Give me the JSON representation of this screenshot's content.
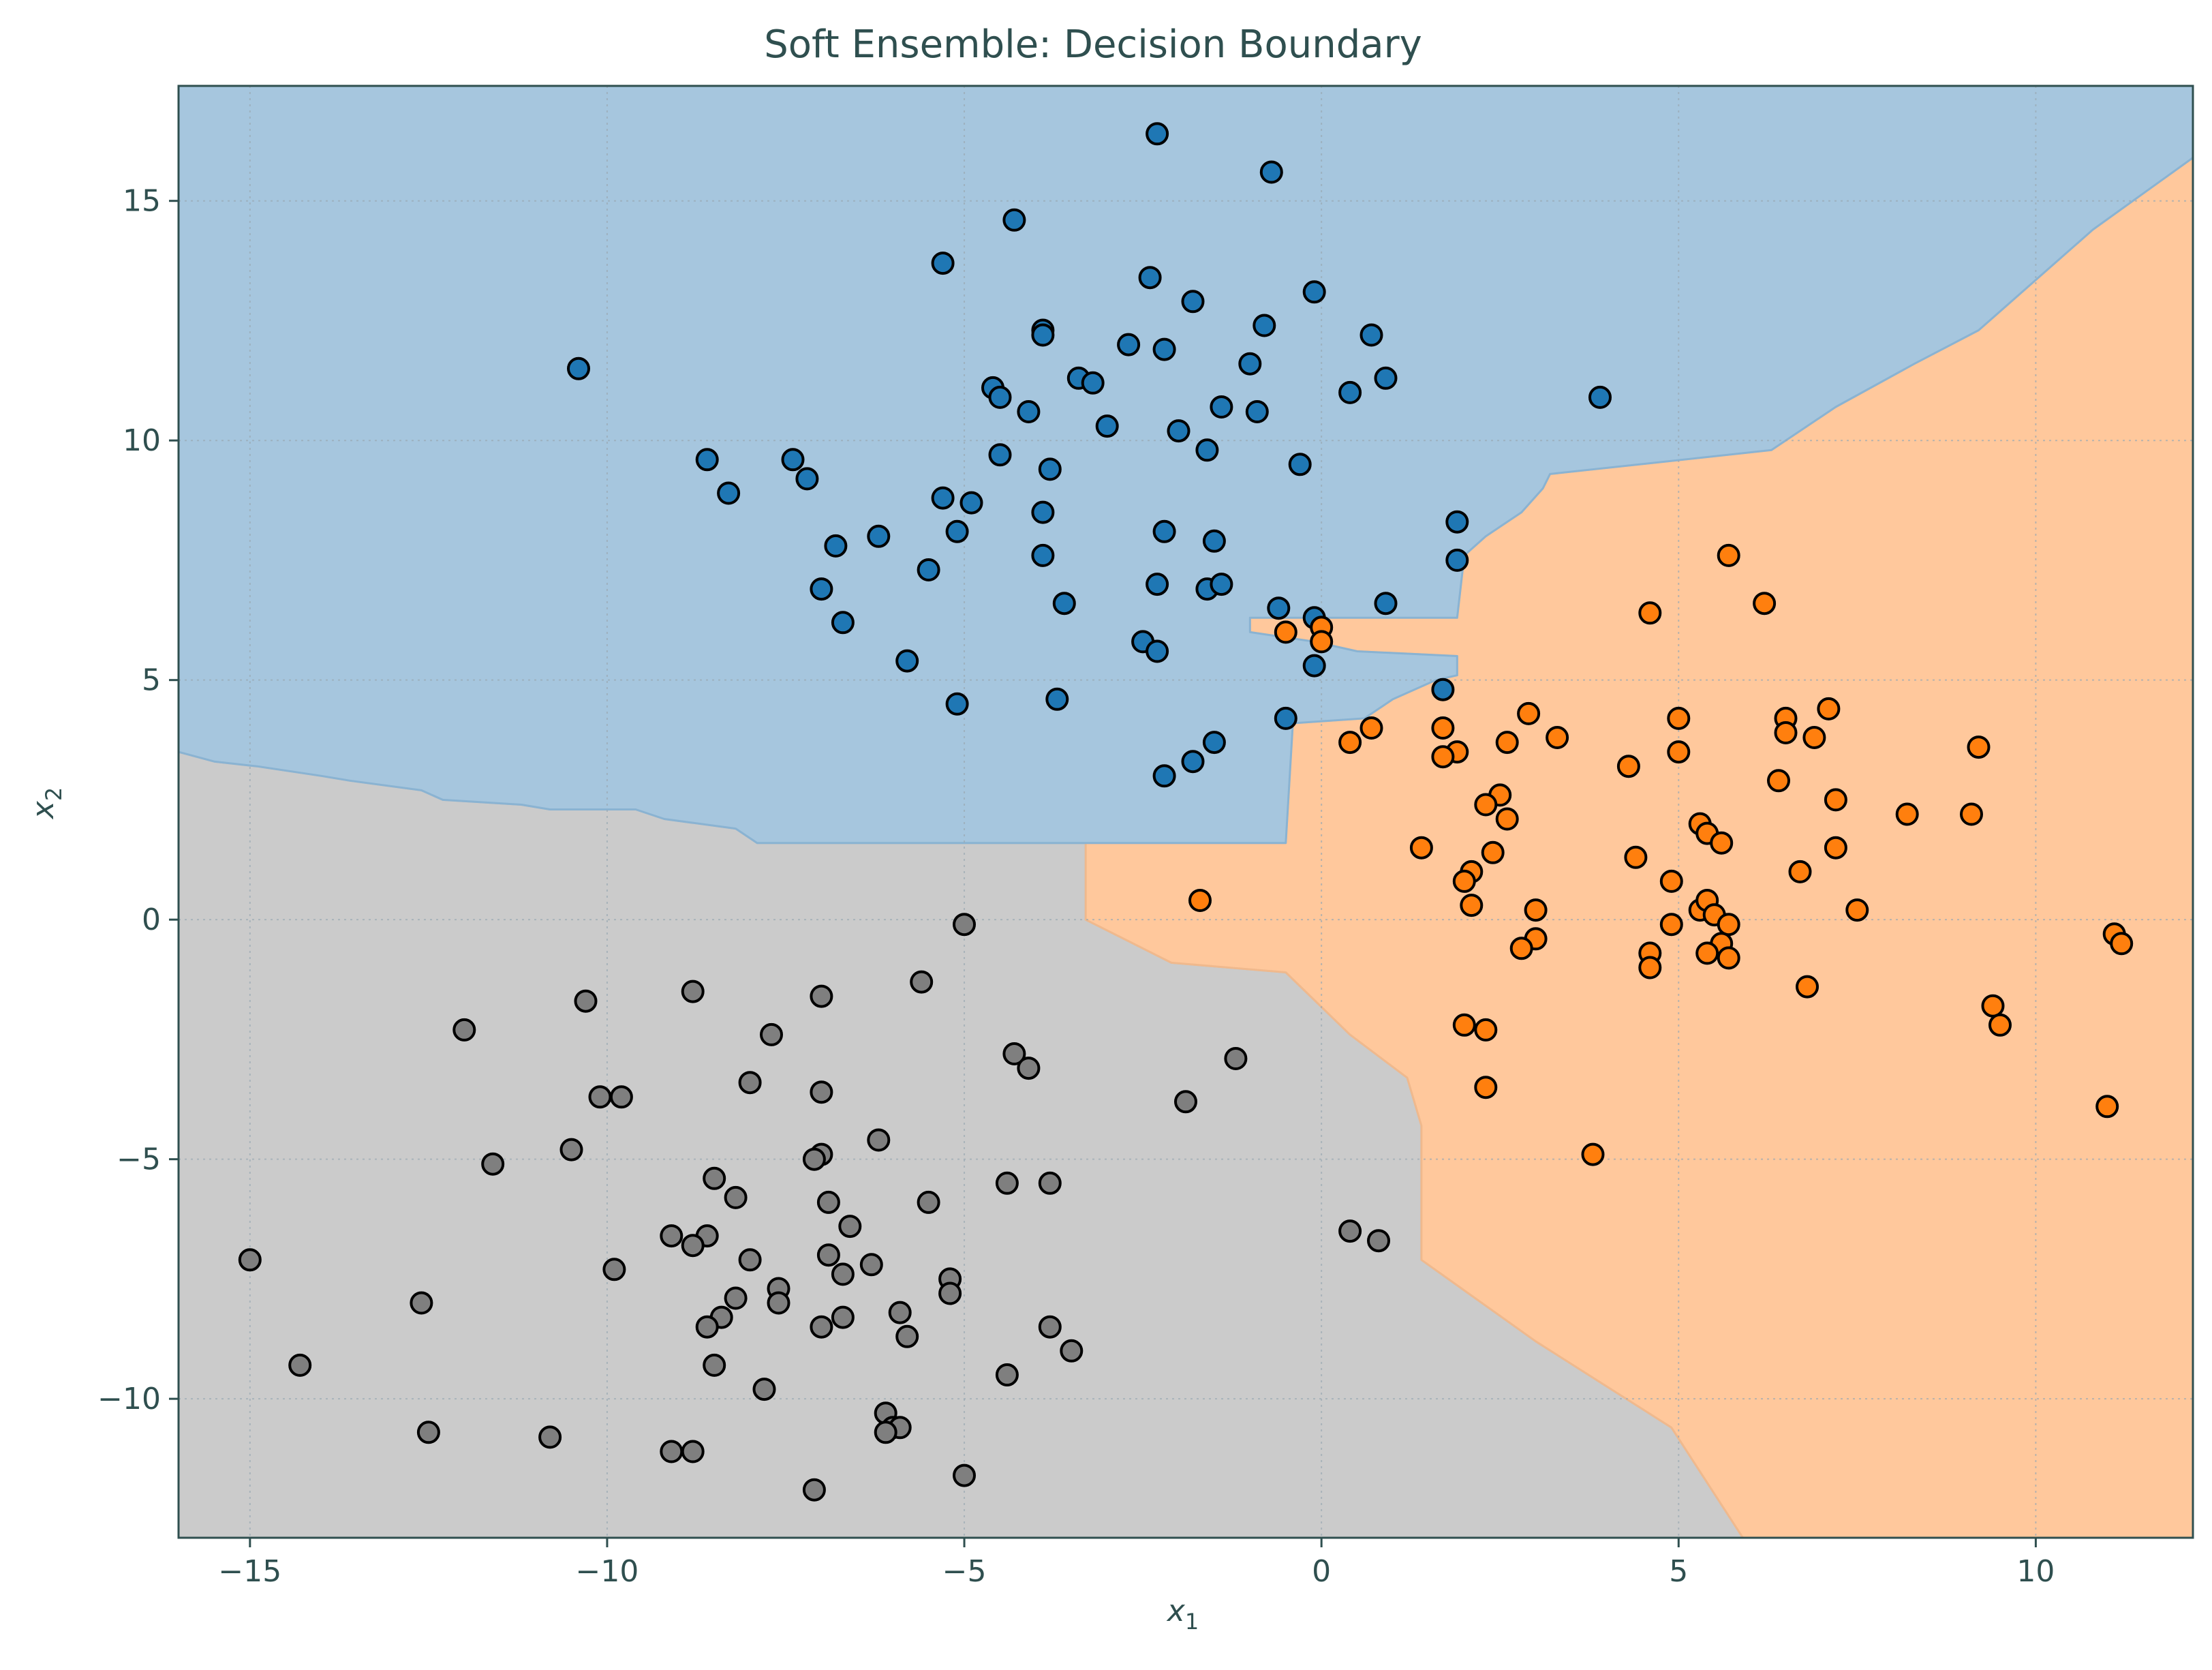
{
  "chart_data": {
    "type": "scatter",
    "title": "Soft Ensemble: Decision Boundary",
    "xlabel": "x",
    "xlabel_sub": "1",
    "ylabel": "x",
    "ylabel_sub": "2",
    "xlim": [
      -16,
      12.2
    ],
    "ylim": [
      -12.9,
      17.4
    ],
    "xticks": [
      -15,
      -10,
      -5,
      0,
      5,
      10
    ],
    "yticks": [
      -10,
      -5,
      0,
      5,
      10,
      15
    ],
    "grid": true,
    "colors": {
      "class_0": "#1f77b4",
      "class_1": "#ff7f0e",
      "class_2": "#7f7f7f",
      "region_0": "#a6c6de",
      "region_1": "#ffc89c",
      "region_2": "#cbcbcb",
      "text": "#2f4f4f",
      "axes": "#2f4f4f",
      "grid": "#9aa9b3"
    },
    "regions": [
      {
        "class": "class_0",
        "polygon": [
          [
            -16,
            17.4
          ],
          [
            12.2,
            17.4
          ],
          [
            12.2,
            15.9
          ],
          [
            10.8,
            14.4
          ],
          [
            9.2,
            12.3
          ],
          [
            8.3,
            11.6
          ],
          [
            7.2,
            10.7
          ],
          [
            6.3,
            9.8
          ],
          [
            3.2,
            9.3
          ],
          [
            3.1,
            9.0
          ],
          [
            2.8,
            8.5
          ],
          [
            2.3,
            8.0
          ],
          [
            2.0,
            7.6
          ],
          [
            1.9,
            6.3
          ],
          [
            -1.0,
            6.3
          ],
          [
            -1.0,
            6.0
          ],
          [
            -0.1,
            5.8
          ],
          [
            0.5,
            5.6
          ],
          [
            1.9,
            5.5
          ],
          [
            1.9,
            5.1
          ],
          [
            1.6,
            5.0
          ],
          [
            1.0,
            4.6
          ],
          [
            0.6,
            4.2
          ],
          [
            -0.4,
            4.1
          ],
          [
            -0.5,
            1.6
          ],
          [
            -2.2,
            1.6
          ],
          [
            -3.3,
            1.6
          ],
          [
            -5.0,
            1.6
          ],
          [
            -6.1,
            1.6
          ],
          [
            -7.9,
            1.6
          ],
          [
            -8.2,
            1.9
          ],
          [
            -9.2,
            2.1
          ],
          [
            -9.6,
            2.3
          ],
          [
            -10.8,
            2.3
          ],
          [
            -11.2,
            2.4
          ],
          [
            -12.3,
            2.5
          ],
          [
            -12.6,
            2.7
          ],
          [
            -13.6,
            2.9
          ],
          [
            -14.0,
            3.0
          ],
          [
            -14.9,
            3.2
          ],
          [
            -15.5,
            3.3
          ],
          [
            -16,
            3.5
          ]
        ]
      },
      {
        "class": "class_1",
        "polygon": [
          [
            12.2,
            15.9
          ],
          [
            10.8,
            14.4
          ],
          [
            9.2,
            12.3
          ],
          [
            8.3,
            11.6
          ],
          [
            7.2,
            10.7
          ],
          [
            6.3,
            9.8
          ],
          [
            3.2,
            9.3
          ],
          [
            3.1,
            9.0
          ],
          [
            2.8,
            8.5
          ],
          [
            2.3,
            8.0
          ],
          [
            2.0,
            7.6
          ],
          [
            1.9,
            6.3
          ],
          [
            -1.0,
            6.3
          ],
          [
            -1.0,
            6.0
          ],
          [
            -0.1,
            5.8
          ],
          [
            0.5,
            5.6
          ],
          [
            1.9,
            5.5
          ],
          [
            1.9,
            5.1
          ],
          [
            1.6,
            5.0
          ],
          [
            1.0,
            4.6
          ],
          [
            0.6,
            4.2
          ],
          [
            -0.4,
            4.1
          ],
          [
            -0.5,
            1.6
          ],
          [
            -3.3,
            1.6
          ],
          [
            -3.3,
            0.0
          ],
          [
            -2.1,
            -0.9
          ],
          [
            -0.5,
            -1.1
          ],
          [
            0.4,
            -2.4
          ],
          [
            1.2,
            -3.3
          ],
          [
            1.4,
            -4.3
          ],
          [
            1.4,
            -7.1
          ],
          [
            3.0,
            -8.8
          ],
          [
            4.9,
            -10.6
          ],
          [
            5.9,
            -12.9
          ],
          [
            12.2,
            -12.9
          ]
        ]
      },
      {
        "class": "class_2",
        "polygon": [
          [
            -16,
            3.5
          ],
          [
            -15.5,
            3.3
          ],
          [
            -14.9,
            3.2
          ],
          [
            -14.0,
            3.0
          ],
          [
            -13.6,
            2.9
          ],
          [
            -12.6,
            2.7
          ],
          [
            -12.3,
            2.5
          ],
          [
            -11.2,
            2.4
          ],
          [
            -10.8,
            2.3
          ],
          [
            -9.6,
            2.3
          ],
          [
            -9.2,
            2.1
          ],
          [
            -8.2,
            1.9
          ],
          [
            -7.9,
            1.6
          ],
          [
            -3.3,
            1.6
          ],
          [
            -3.3,
            0.0
          ],
          [
            -2.1,
            -0.9
          ],
          [
            -0.5,
            -1.1
          ],
          [
            0.4,
            -2.4
          ],
          [
            1.2,
            -3.3
          ],
          [
            1.4,
            -4.3
          ],
          [
            1.4,
            -7.1
          ],
          [
            3.0,
            -8.8
          ],
          [
            4.9,
            -10.6
          ],
          [
            5.9,
            -12.9
          ],
          [
            -16,
            -12.9
          ]
        ]
      }
    ],
    "series": [
      {
        "class": "class_0",
        "points": [
          [
            -2.3,
            16.4
          ],
          [
            -0.7,
            15.6
          ],
          [
            -4.3,
            14.6
          ],
          [
            -5.3,
            13.7
          ],
          [
            -2.4,
            13.4
          ],
          [
            -0.1,
            13.1
          ],
          [
            -1.8,
            12.9
          ],
          [
            -0.8,
            12.4
          ],
          [
            -3.9,
            12.3
          ],
          [
            -3.9,
            12.2
          ],
          [
            -2.7,
            12.0
          ],
          [
            -2.2,
            11.9
          ],
          [
            0.7,
            12.2
          ],
          [
            -10.4,
            11.5
          ],
          [
            -3.4,
            11.3
          ],
          [
            -3.2,
            11.2
          ],
          [
            -4.6,
            11.1
          ],
          [
            -4.5,
            10.9
          ],
          [
            -1.0,
            11.6
          ],
          [
            0.4,
            11.0
          ],
          [
            0.9,
            11.3
          ],
          [
            3.9,
            10.9
          ],
          [
            -1.4,
            10.7
          ],
          [
            -0.9,
            10.6
          ],
          [
            -4.1,
            10.6
          ],
          [
            -3.0,
            10.3
          ],
          [
            -2.0,
            10.2
          ],
          [
            -1.6,
            9.8
          ],
          [
            -4.5,
            9.7
          ],
          [
            -3.8,
            9.4
          ],
          [
            -0.3,
            9.5
          ],
          [
            -8.6,
            9.6
          ],
          [
            -7.4,
            9.6
          ],
          [
            -8.3,
            8.9
          ],
          [
            -7.2,
            9.2
          ],
          [
            -5.3,
            8.8
          ],
          [
            -4.9,
            8.7
          ],
          [
            -3.9,
            8.5
          ],
          [
            1.9,
            8.3
          ],
          [
            -6.2,
            8.0
          ],
          [
            -5.1,
            8.1
          ],
          [
            -2.2,
            8.1
          ],
          [
            -1.5,
            7.9
          ],
          [
            -6.8,
            7.8
          ],
          [
            -3.9,
            7.6
          ],
          [
            1.9,
            7.5
          ],
          [
            -5.5,
            7.3
          ],
          [
            -7.0,
            6.9
          ],
          [
            -2.3,
            7.0
          ],
          [
            -1.6,
            6.9
          ],
          [
            -1.4,
            7.0
          ],
          [
            -3.6,
            6.6
          ],
          [
            0.9,
            6.6
          ],
          [
            -0.6,
            6.5
          ],
          [
            -6.7,
            6.2
          ],
          [
            -0.1,
            6.3
          ],
          [
            -2.5,
            5.8
          ],
          [
            -2.3,
            5.6
          ],
          [
            -5.8,
            5.4
          ],
          [
            -0.1,
            5.3
          ],
          [
            1.7,
            4.8
          ],
          [
            -3.7,
            4.6
          ],
          [
            -5.1,
            4.5
          ],
          [
            -0.5,
            4.2
          ],
          [
            -1.5,
            3.7
          ],
          [
            -1.8,
            3.3
          ],
          [
            -2.2,
            3.0
          ]
        ]
      },
      {
        "class": "class_1",
        "points": [
          [
            5.7,
            7.6
          ],
          [
            6.2,
            6.6
          ],
          [
            4.6,
            6.4
          ],
          [
            0.0,
            6.1
          ],
          [
            -0.5,
            6.0
          ],
          [
            0.0,
            5.8
          ],
          [
            2.9,
            4.3
          ],
          [
            5.0,
            4.2
          ],
          [
            6.5,
            4.2
          ],
          [
            7.1,
            4.4
          ],
          [
            1.7,
            4.0
          ],
          [
            0.7,
            4.0
          ],
          [
            3.3,
            3.8
          ],
          [
            6.5,
            3.9
          ],
          [
            6.9,
            3.8
          ],
          [
            0.4,
            3.7
          ],
          [
            2.6,
            3.7
          ],
          [
            5.0,
            3.5
          ],
          [
            9.2,
            3.6
          ],
          [
            1.9,
            3.5
          ],
          [
            1.7,
            3.4
          ],
          [
            4.3,
            3.2
          ],
          [
            6.4,
            2.9
          ],
          [
            2.5,
            2.6
          ],
          [
            2.3,
            2.4
          ],
          [
            7.2,
            2.5
          ],
          [
            2.6,
            2.1
          ],
          [
            8.2,
            2.2
          ],
          [
            9.1,
            2.2
          ],
          [
            5.3,
            2.0
          ],
          [
            5.4,
            1.8
          ],
          [
            5.6,
            1.6
          ],
          [
            1.4,
            1.5
          ],
          [
            7.2,
            1.5
          ],
          [
            2.4,
            1.4
          ],
          [
            4.4,
            1.3
          ],
          [
            2.1,
            1.0
          ],
          [
            6.7,
            1.0
          ],
          [
            2.0,
            0.8
          ],
          [
            4.9,
            0.8
          ],
          [
            -1.7,
            0.4
          ],
          [
            2.1,
            0.3
          ],
          [
            3.0,
            0.2
          ],
          [
            5.3,
            0.2
          ],
          [
            5.4,
            0.4
          ],
          [
            5.5,
            0.1
          ],
          [
            7.5,
            0.2
          ],
          [
            4.9,
            -0.1
          ],
          [
            5.7,
            -0.1
          ],
          [
            3.0,
            -0.4
          ],
          [
            2.8,
            -0.6
          ],
          [
            5.6,
            -0.5
          ],
          [
            5.4,
            -0.7
          ],
          [
            5.7,
            -0.8
          ],
          [
            4.6,
            -0.7
          ],
          [
            4.6,
            -1.0
          ],
          [
            6.8,
            -1.4
          ],
          [
            11.1,
            -0.3
          ],
          [
            11.2,
            -0.5
          ],
          [
            9.4,
            -1.8
          ],
          [
            9.5,
            -2.2
          ],
          [
            2.0,
            -2.2
          ],
          [
            2.3,
            -2.3
          ],
          [
            2.3,
            -3.5
          ],
          [
            11.0,
            -3.9
          ],
          [
            3.8,
            -4.9
          ]
        ]
      },
      {
        "class": "class_2",
        "points": [
          [
            -5.0,
            -0.1
          ],
          [
            -5.6,
            -1.3
          ],
          [
            -8.8,
            -1.5
          ],
          [
            -7.0,
            -1.6
          ],
          [
            -10.3,
            -1.7
          ],
          [
            -12.0,
            -2.3
          ],
          [
            -7.7,
            -2.4
          ],
          [
            -4.3,
            -2.8
          ],
          [
            -4.1,
            -3.1
          ],
          [
            -1.2,
            -2.9
          ],
          [
            -8.0,
            -3.4
          ],
          [
            -7.0,
            -3.6
          ],
          [
            -10.1,
            -3.7
          ],
          [
            -9.8,
            -3.7
          ],
          [
            -1.9,
            -3.8
          ],
          [
            -6.2,
            -4.6
          ],
          [
            -10.5,
            -4.8
          ],
          [
            -7.0,
            -4.9
          ],
          [
            -7.1,
            -5.0
          ],
          [
            -11.6,
            -5.1
          ],
          [
            -8.5,
            -5.4
          ],
          [
            -4.4,
            -5.5
          ],
          [
            -3.8,
            -5.5
          ],
          [
            -8.2,
            -5.8
          ],
          [
            -6.9,
            -5.9
          ],
          [
            -5.5,
            -5.9
          ],
          [
            -6.6,
            -6.4
          ],
          [
            -9.1,
            -6.6
          ],
          [
            -8.6,
            -6.6
          ],
          [
            -8.8,
            -6.8
          ],
          [
            0.4,
            -6.5
          ],
          [
            0.8,
            -6.7
          ],
          [
            -6.9,
            -7.0
          ],
          [
            -8.0,
            -7.1
          ],
          [
            -6.3,
            -7.2
          ],
          [
            -15.0,
            -7.1
          ],
          [
            -9.9,
            -7.3
          ],
          [
            -6.7,
            -7.4
          ],
          [
            -5.2,
            -7.5
          ],
          [
            -5.2,
            -7.8
          ],
          [
            -7.6,
            -7.7
          ],
          [
            -7.6,
            -8.0
          ],
          [
            -8.2,
            -7.9
          ],
          [
            -12.6,
            -8.0
          ],
          [
            -5.9,
            -8.2
          ],
          [
            -8.4,
            -8.3
          ],
          [
            -6.7,
            -8.3
          ],
          [
            -7.0,
            -8.5
          ],
          [
            -8.6,
            -8.5
          ],
          [
            -3.8,
            -8.5
          ],
          [
            -5.8,
            -8.7
          ],
          [
            -3.5,
            -9.0
          ],
          [
            -8.5,
            -9.3
          ],
          [
            -14.3,
            -9.3
          ],
          [
            -4.4,
            -9.5
          ],
          [
            -7.8,
            -9.8
          ],
          [
            -6.1,
            -10.3
          ],
          [
            -6.0,
            -10.6
          ],
          [
            -5.9,
            -10.6
          ],
          [
            -6.1,
            -10.7
          ],
          [
            -12.5,
            -10.7
          ],
          [
            -10.8,
            -10.8
          ],
          [
            -9.1,
            -11.1
          ],
          [
            -8.8,
            -11.1
          ],
          [
            -5.0,
            -11.6
          ],
          [
            -7.1,
            -11.9
          ]
        ]
      }
    ]
  }
}
